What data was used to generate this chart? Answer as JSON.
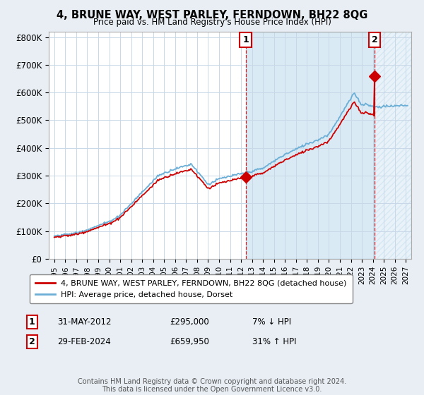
{
  "title": "4, BRUNE WAY, WEST PARLEY, FERNDOWN, BH22 8QG",
  "subtitle": "Price paid vs. HM Land Registry's House Price Index (HPI)",
  "ylim": [
    0,
    820000
  ],
  "yticks": [
    0,
    100000,
    200000,
    300000,
    400000,
    500000,
    600000,
    700000,
    800000
  ],
  "ytick_labels": [
    "£0",
    "£100K",
    "£200K",
    "£300K",
    "£400K",
    "£500K",
    "£600K",
    "£700K",
    "£800K"
  ],
  "hpi_color": "#6baed6",
  "property_color": "#cc0000",
  "fill_color": "#ddeeff",
  "sale1_year": 2012.42,
  "sale1_price": 295000,
  "sale2_year": 2024.17,
  "sale2_price": 659950,
  "legend_property": "4, BRUNE WAY, WEST PARLEY, FERNDOWN, BH22 8QG (detached house)",
  "legend_hpi": "HPI: Average price, detached house, Dorset",
  "table_row1": [
    "1",
    "31-MAY-2012",
    "£295,000",
    "7% ↓ HPI"
  ],
  "table_row2": [
    "2",
    "29-FEB-2024",
    "£659,950",
    "31% ↑ HPI"
  ],
  "footer": "Contains HM Land Registry data © Crown copyright and database right 2024.\nThis data is licensed under the Open Government Licence v3.0.",
  "bg_color": "#e8eef4",
  "plot_bg": "#ffffff",
  "grid_color": "#c8d8e8"
}
